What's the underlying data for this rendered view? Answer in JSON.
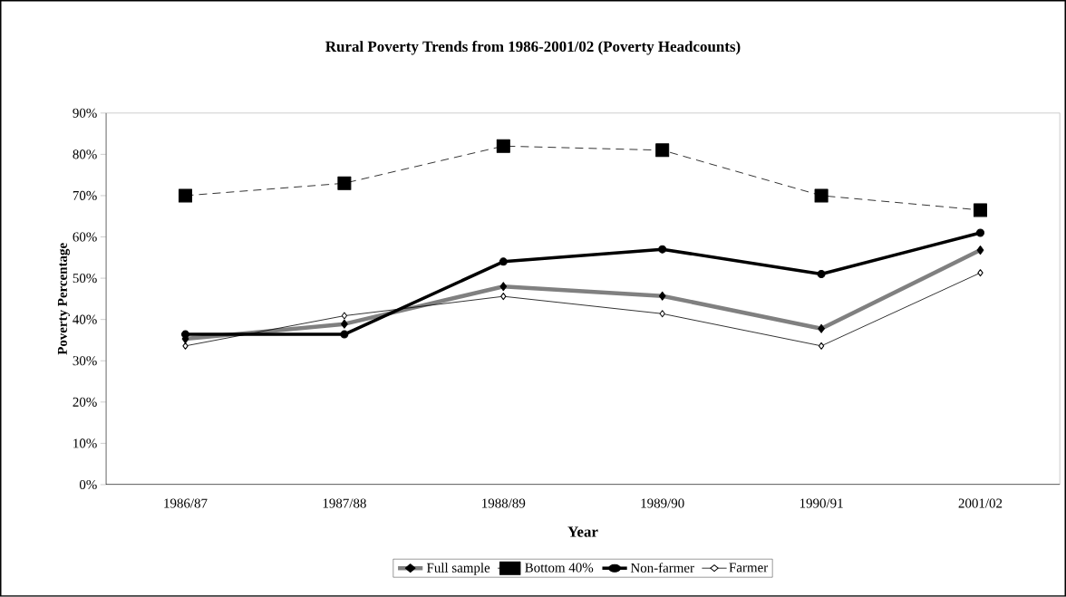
{
  "chart_data": {
    "type": "line",
    "title": "Rural Poverty Trends from 1986-2001/02 (Poverty Headcounts)",
    "xlabel": "Year",
    "ylabel": "Poverty Percentage",
    "categories": [
      "1986/87",
      "1987/88",
      "1988/89",
      "1989/90",
      "1990/91",
      "2001/02"
    ],
    "ylim": [
      0,
      90
    ],
    "yticks": [
      {
        "value": 0,
        "label": "0%"
      },
      {
        "value": 10,
        "label": "10%"
      },
      {
        "value": 20,
        "label": "20%"
      },
      {
        "value": 30,
        "label": "30%"
      },
      {
        "value": 40,
        "label": "40%"
      },
      {
        "value": 50,
        "label": "50%"
      },
      {
        "value": 60,
        "label": "60%"
      },
      {
        "value": 70,
        "label": "70%"
      },
      {
        "value": 80,
        "label": "80%"
      },
      {
        "value": 90,
        "label": "90%"
      }
    ],
    "grid": false,
    "legend": "bottom",
    "series": [
      {
        "name": "Full sample",
        "color": "#808080",
        "marker": "diamond",
        "line_style": "solid",
        "values": [
          35.3,
          38.9,
          48,
          45.7,
          37.8,
          56.8
        ]
      },
      {
        "name": "Bottom 40%",
        "color": "#000000",
        "marker": "square",
        "line_style": "dashed",
        "values": [
          70,
          73,
          82,
          81,
          70,
          66.5
        ]
      },
      {
        "name": "Non-farmer",
        "color": "#000000",
        "marker": "circle",
        "line_style": "solid",
        "values": [
          36.4,
          36.4,
          54,
          57,
          51,
          61
        ]
      },
      {
        "name": "Farmer",
        "color": "#000000",
        "marker": "diamond",
        "line_style": "solid",
        "values": [
          33.6,
          40.9,
          45.6,
          41.4,
          33.6,
          51.3
        ]
      }
    ]
  }
}
